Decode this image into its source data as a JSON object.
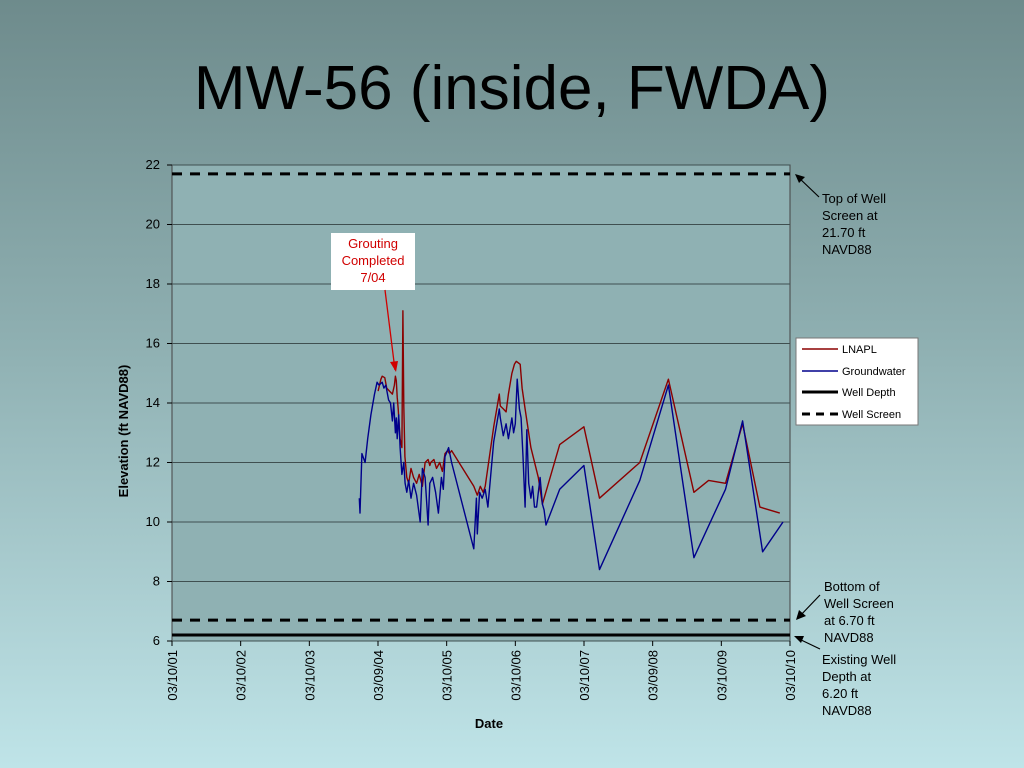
{
  "slide": {
    "title": "MW-56 (inside, FWDA)"
  },
  "chart_data": {
    "type": "line",
    "xlabel": "Date",
    "ylabel": "Elevation (ft NAVD88)",
    "ylim": [
      6,
      22
    ],
    "y_ticks": [
      6,
      8,
      10,
      12,
      14,
      16,
      18,
      20,
      22
    ],
    "x_ticks": [
      "03/10/01",
      "03/10/02",
      "03/10/03",
      "03/09/04",
      "03/10/05",
      "03/10/06",
      "03/10/07",
      "03/09/08",
      "03/10/09",
      "03/10/10"
    ],
    "xlim": [
      "2001-03-10",
      "2010-03-10"
    ],
    "grid": "horizontal",
    "legend_position": "right",
    "colors": {
      "LNAPL": "#8b0000",
      "Groundwater": "#00008b",
      "Well Depth": "#000000",
      "Well Screen": "#000000"
    },
    "series": [
      {
        "name": "LNAPL",
        "points": [
          [
            "2004-03-10",
            14.4
          ],
          [
            "2004-03-25",
            14.8
          ],
          [
            "2004-04-01",
            14.9
          ],
          [
            "2004-04-15",
            14.85
          ],
          [
            "2004-04-25",
            14.5
          ],
          [
            "2004-05-10",
            14.4
          ],
          [
            "2004-05-25",
            14.3
          ],
          [
            "2004-06-05",
            14.6
          ],
          [
            "2004-06-10",
            14.9
          ],
          [
            "2004-06-15",
            14.75
          ],
          [
            "2004-06-20",
            14.2
          ],
          [
            "2004-06-25",
            13.8
          ],
          [
            "2004-07-05",
            12.8
          ],
          [
            "2004-07-15",
            12.5
          ],
          [
            "2004-07-20",
            17.1
          ],
          [
            "2004-07-25",
            13.9
          ],
          [
            "2004-07-31",
            12.2
          ],
          [
            "2004-08-10",
            11.5
          ],
          [
            "2004-08-20",
            11.3
          ],
          [
            "2004-09-01",
            11.8
          ],
          [
            "2004-09-15",
            11.5
          ],
          [
            "2004-10-01",
            11.3
          ],
          [
            "2004-10-15",
            11.6
          ],
          [
            "2004-11-01",
            11.2
          ],
          [
            "2004-11-15",
            12.0
          ],
          [
            "2004-12-01",
            12.1
          ],
          [
            "2004-12-10",
            11.9
          ],
          [
            "2004-12-15",
            12.0
          ],
          [
            "2005-01-01",
            12.1
          ],
          [
            "2005-01-15",
            11.8
          ],
          [
            "2005-02-01",
            12.0
          ],
          [
            "2005-02-15",
            11.7
          ],
          [
            "2005-03-01",
            12.3
          ],
          [
            "2005-03-15",
            12.4
          ],
          [
            "2005-03-25",
            12.3
          ],
          [
            "2005-04-05",
            12.4
          ],
          [
            "2005-08-01",
            11.2
          ],
          [
            "2005-08-20",
            10.9
          ],
          [
            "2005-09-05",
            11.2
          ],
          [
            "2005-09-20",
            11.0
          ],
          [
            "2005-10-01",
            11.2
          ],
          [
            "2005-11-15",
            13.2
          ],
          [
            "2005-12-15",
            14.3
          ],
          [
            "2005-12-20",
            13.9
          ],
          [
            "2006-01-05",
            13.8
          ],
          [
            "2006-01-20",
            13.7
          ],
          [
            "2006-02-01",
            14.3
          ],
          [
            "2006-02-20",
            15.0
          ],
          [
            "2006-03-05",
            15.3
          ],
          [
            "2006-03-15",
            15.4
          ],
          [
            "2006-04-05",
            15.3
          ],
          [
            "2006-04-15",
            14.5
          ],
          [
            "2006-05-01",
            13.8
          ],
          [
            "2006-06-01",
            12.5
          ],
          [
            "2006-07-10",
            11.5
          ],
          [
            "2006-08-01",
            10.6
          ],
          [
            "2006-11-01",
            12.6
          ],
          [
            "2007-03-10",
            13.2
          ],
          [
            "2007-06-01",
            10.8
          ],
          [
            "2008-01-01",
            12.0
          ],
          [
            "2008-06-01",
            14.8
          ],
          [
            "2008-10-15",
            11.0
          ],
          [
            "2009-01-01",
            11.4
          ],
          [
            "2009-04-01",
            11.3
          ],
          [
            "2009-07-01",
            13.3
          ],
          [
            "2009-10-01",
            10.5
          ],
          [
            "2010-01-15",
            10.3
          ]
        ]
      },
      {
        "name": "Groundwater",
        "points": [
          [
            "2003-12-01",
            10.8
          ],
          [
            "2003-12-05",
            10.3
          ],
          [
            "2003-12-15",
            12.3
          ],
          [
            "2004-01-01",
            12.0
          ],
          [
            "2004-01-15",
            12.8
          ],
          [
            "2004-02-01",
            13.6
          ],
          [
            "2004-02-20",
            14.3
          ],
          [
            "2004-03-05",
            14.7
          ],
          [
            "2004-03-15",
            14.6
          ],
          [
            "2004-04-01",
            14.7
          ],
          [
            "2004-04-10",
            14.5
          ],
          [
            "2004-04-20",
            14.6
          ],
          [
            "2004-05-05",
            14.1
          ],
          [
            "2004-05-15",
            14.0
          ],
          [
            "2004-05-25",
            13.4
          ],
          [
            "2004-06-01",
            14.0
          ],
          [
            "2004-06-10",
            13.0
          ],
          [
            "2004-06-15",
            13.5
          ],
          [
            "2004-06-20",
            12.8
          ],
          [
            "2004-06-28",
            13.6
          ],
          [
            "2004-07-05",
            12.5
          ],
          [
            "2004-07-15",
            11.6
          ],
          [
            "2004-07-25",
            12.0
          ],
          [
            "2004-08-01",
            11.3
          ],
          [
            "2004-08-10",
            11.0
          ],
          [
            "2004-08-20",
            11.4
          ],
          [
            "2004-09-01",
            10.8
          ],
          [
            "2004-09-15",
            11.3
          ],
          [
            "2004-10-01",
            10.9
          ],
          [
            "2004-10-20",
            10.0
          ],
          [
            "2004-11-01",
            11.8
          ],
          [
            "2004-11-15",
            11.5
          ],
          [
            "2004-12-01",
            9.9
          ],
          [
            "2004-12-10",
            11.3
          ],
          [
            "2004-12-25",
            11.5
          ],
          [
            "2005-01-10",
            11.0
          ],
          [
            "2005-01-25",
            10.3
          ],
          [
            "2005-02-10",
            11.5
          ],
          [
            "2005-02-20",
            11.1
          ],
          [
            "2005-03-01",
            12.2
          ],
          [
            "2005-03-20",
            12.5
          ],
          [
            "2005-04-05",
            12.0
          ],
          [
            "2005-08-01",
            9.1
          ],
          [
            "2005-08-15",
            10.8
          ],
          [
            "2005-08-20",
            9.6
          ],
          [
            "2005-09-01",
            11.0
          ],
          [
            "2005-09-15",
            10.8
          ],
          [
            "2005-10-01",
            11.1
          ],
          [
            "2005-10-15",
            10.5
          ],
          [
            "2005-11-15",
            12.7
          ],
          [
            "2005-12-15",
            13.8
          ],
          [
            "2005-12-20",
            13.5
          ],
          [
            "2006-01-05",
            12.9
          ],
          [
            "2006-01-20",
            13.3
          ],
          [
            "2006-02-01",
            12.8
          ],
          [
            "2006-02-20",
            13.5
          ],
          [
            "2006-03-01",
            13.0
          ],
          [
            "2006-03-10",
            13.3
          ],
          [
            "2006-03-20",
            14.8
          ],
          [
            "2006-04-01",
            13.8
          ],
          [
            "2006-04-10",
            13.5
          ],
          [
            "2006-04-20",
            12.2
          ],
          [
            "2006-05-01",
            10.5
          ],
          [
            "2006-05-10",
            13.1
          ],
          [
            "2006-05-20",
            11.3
          ],
          [
            "2006-06-01",
            10.8
          ],
          [
            "2006-06-10",
            11.2
          ],
          [
            "2006-06-20",
            10.5
          ],
          [
            "2006-07-01",
            10.5
          ],
          [
            "2006-07-20",
            11.5
          ],
          [
            "2006-08-01",
            10.6
          ],
          [
            "2006-08-10",
            10.4
          ],
          [
            "2006-08-20",
            9.9
          ],
          [
            "2006-11-01",
            11.1
          ],
          [
            "2007-03-10",
            11.9
          ],
          [
            "2007-06-01",
            8.4
          ],
          [
            "2008-01-01",
            11.4
          ],
          [
            "2008-06-01",
            14.6
          ],
          [
            "2008-10-15",
            8.8
          ],
          [
            "2009-04-01",
            11.1
          ],
          [
            "2009-07-01",
            13.4
          ],
          [
            "2009-10-15",
            9.0
          ],
          [
            "2010-02-01",
            10.0
          ]
        ]
      },
      {
        "name": "Well Depth",
        "value": 6.2,
        "style": "solid"
      },
      {
        "name": "Well Screen",
        "values": [
          21.7,
          6.7
        ],
        "style": "dashed"
      }
    ],
    "annotations": {
      "top_screen": [
        "Top of Well",
        "Screen at",
        "21.70 ft",
        "NAVD88"
      ],
      "bottom_screen": [
        "Bottom of",
        "Well Screen",
        "at 6.70 ft",
        "NAVD88"
      ],
      "well_depth": [
        "Existing Well",
        "Depth at",
        "6.20 ft",
        "NAVD88"
      ],
      "grouting": [
        "Grouting",
        "Completed",
        "7/04"
      ]
    }
  }
}
